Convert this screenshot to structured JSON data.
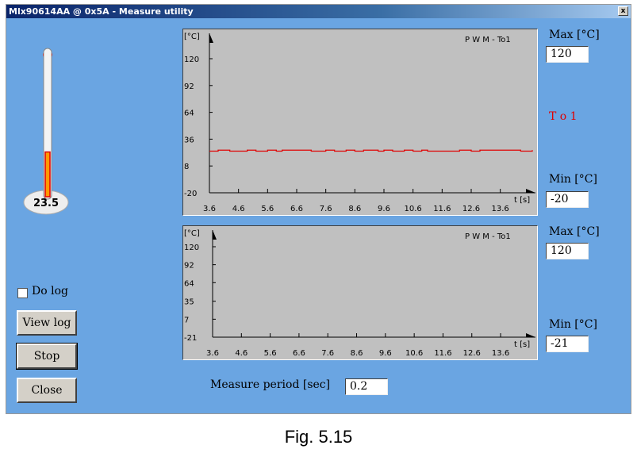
{
  "window": {
    "title": "Mlx90614AA @ 0x5A - Measure utility",
    "close_label": "x"
  },
  "thermometer": {
    "value": "23.5",
    "fill_fraction": 0.31,
    "range": [
      -20,
      120
    ]
  },
  "controls": {
    "do_log_label": "Do log",
    "do_log_checked": false,
    "view_log_label": "View log",
    "stop_label": "Stop",
    "close_label": "Close",
    "measure_period_label": "Measure period [sec]",
    "measure_period_value": "0.2"
  },
  "panel_top": {
    "max_label": "Max [°C]",
    "max_value": "120",
    "series_label": "T o 1",
    "min_label": "Min [°C]",
    "min_value": "-20",
    "series_color": "#e00000"
  },
  "panel_bottom": {
    "max_label": "Max [°C]",
    "max_value": "120",
    "min_label": "Min [°C]",
    "min_value": "-21"
  },
  "chart_data": [
    {
      "type": "line",
      "title": "P W M - To1",
      "ylabel": "[°C]",
      "xlabel": "t [s]",
      "ylim": [
        -20,
        120
      ],
      "yticks": [
        "120",
        "92",
        "64",
        "36",
        "8",
        "-20"
      ],
      "ytick_values": [
        120,
        92,
        64,
        36,
        8,
        -20
      ],
      "xticks": [
        "3.6",
        "4.6",
        "5.6",
        "6.6",
        "7.6",
        "8.6",
        "9.6",
        "10.6",
        "11.6",
        "12.6",
        "13.6"
      ],
      "xlim": [
        3.6,
        14.7
      ],
      "grid": false,
      "series": [
        {
          "color": "#e00000",
          "x": [
            3.6,
            3.9,
            4.3,
            4.9,
            5.2,
            5.6,
            5.9,
            6.1,
            6.6,
            7.1,
            7.6,
            7.9,
            8.3,
            8.6,
            8.9,
            9.4,
            9.6,
            9.9,
            10.3,
            10.6,
            10.9,
            11.1,
            11.6,
            12.2,
            12.6,
            12.9,
            13.4,
            14.0,
            14.3,
            14.7
          ],
          "y": [
            23.5,
            24.5,
            23.5,
            24.5,
            23.5,
            24.5,
            23.5,
            24.5,
            24.5,
            23.5,
            24.5,
            23.5,
            24.5,
            23.5,
            24.5,
            23.5,
            24.5,
            23.5,
            24.5,
            23.5,
            24.5,
            23.5,
            23.5,
            24.5,
            23.5,
            24.5,
            24.5,
            24.5,
            23.5,
            24.5
          ]
        }
      ]
    },
    {
      "type": "line",
      "title": "P W M - To1",
      "ylabel": "[°C]",
      "xlabel": "t [s]",
      "ylim": [
        -21,
        120
      ],
      "yticks": [
        "120",
        "92",
        "64",
        "35",
        "7",
        "-21"
      ],
      "ytick_values": [
        120,
        92,
        64,
        35,
        7,
        -21
      ],
      "xticks": [
        "3.6",
        "4.6",
        "5.6",
        "6.6",
        "7.6",
        "8.6",
        "9.6",
        "10.6",
        "11.6",
        "12.6",
        "13.6"
      ],
      "xlim": [
        3.6,
        14.7
      ],
      "grid": false,
      "series": []
    }
  ]
}
